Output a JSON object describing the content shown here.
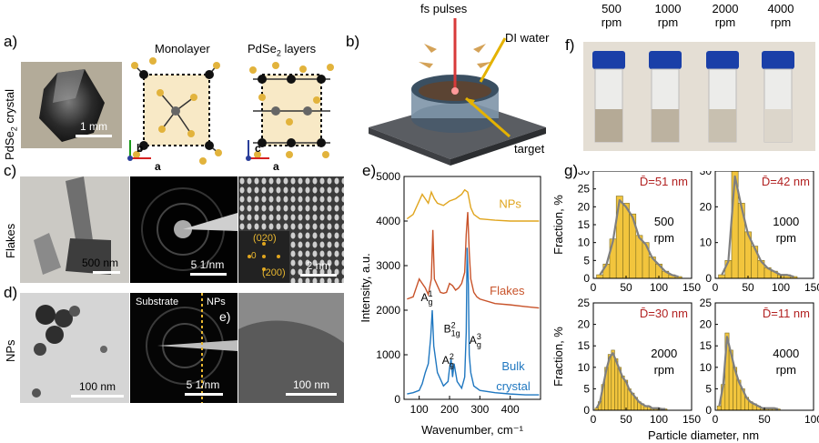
{
  "panel_labels": {
    "a": "a)",
    "b": "b)",
    "c": "c)",
    "d": "d)",
    "e": "e)",
    "f": "f)",
    "g": "g)"
  },
  "panel_a": {
    "crystal_label": "PdSe",
    "crystal_label_sub": "2",
    "crystal_label_tail": " crystal",
    "crystal_scale": "1 mm",
    "monolayer_title": "Monolayer",
    "layers_title_pre": "PdSe",
    "layers_title_sub": "2",
    "layers_title_post": " layers",
    "axes": {
      "b": "b",
      "a": "a",
      "c": "c"
    }
  },
  "panel_b": {
    "fs_pulses": "fs pulses",
    "di_water": "DI water",
    "target": "target"
  },
  "panel_c": {
    "row_label": "Flakes",
    "scale1": "500 nm",
    "scale2": "5 1/nm",
    "scale3": "2 nm",
    "fft_020": "(020)",
    "fft_0": "0",
    "fft_200": "(200)"
  },
  "panel_d": {
    "row_label": "NPs",
    "scale1": "100 nm",
    "scale2": "5 1/nm",
    "scale3": "100 nm",
    "substrate": "Substrate",
    "nps": "NPs",
    "inner_label": "e)"
  },
  "panel_f": {
    "speeds": [
      "500",
      "1000",
      "2000",
      "4000"
    ],
    "unit": "rpm"
  },
  "colors": {
    "nps": "#e0a51e",
    "flakes": "#c8532a",
    "bulk": "#1f77c0",
    "hist": "#f2c53d",
    "fit": "#7f7f7f",
    "dlabel": "#b22222"
  },
  "chart_data": [
    {
      "type": "line",
      "panel": "e)",
      "xlabel": "Wavenumber, cm⁻¹",
      "ylabel": "Intensity, a.u.",
      "xlim": [
        50,
        500
      ],
      "ylim": [
        0,
        5000
      ],
      "xticks": [
        100,
        200,
        300,
        400
      ],
      "yticks": [
        0,
        1000,
        2000,
        3000,
        4000,
        5000
      ],
      "peak_labels": [
        {
          "main": "A",
          "sup": "1",
          "sub": "g",
          "x": 125,
          "y": 2200
        },
        {
          "main": "A",
          "sup": "2",
          "sub": "g",
          "x": 195,
          "y": 800
        },
        {
          "main": "B",
          "sup": "2",
          "sub": "1g",
          "x": 208,
          "y": 1500
        },
        {
          "main": "A",
          "sup": "3",
          "sub": "g",
          "x": 285,
          "y": 1250
        }
      ],
      "series": [
        {
          "name": "NPs",
          "x": [
            60,
            80,
            100,
            110,
            120,
            130,
            140,
            150,
            160,
            180,
            200,
            220,
            240,
            250,
            260,
            270,
            280,
            300,
            350,
            400,
            450,
            495
          ],
          "values": [
            4050,
            4150,
            4450,
            4600,
            4500,
            4400,
            4650,
            4500,
            4400,
            4350,
            4450,
            4500,
            4600,
            4700,
            4650,
            4300,
            4150,
            4050,
            4020,
            4000,
            4000,
            4000
          ]
        },
        {
          "name": "Flakes",
          "x": [
            60,
            80,
            100,
            110,
            120,
            130,
            140,
            145,
            150,
            160,
            170,
            180,
            190,
            200,
            210,
            220,
            230,
            240,
            250,
            255,
            260,
            265,
            270,
            280,
            290,
            300,
            350,
            400,
            450,
            495
          ],
          "values": [
            2250,
            2300,
            2700,
            2600,
            2500,
            2350,
            2700,
            3800,
            2700,
            2550,
            2400,
            2380,
            2400,
            2600,
            2550,
            2450,
            2500,
            2600,
            2850,
            3700,
            4200,
            3300,
            2700,
            2400,
            2300,
            2250,
            2150,
            2120,
            2080,
            2050
          ]
        },
        {
          "name": "Bulk crystal",
          "x": [
            60,
            80,
            100,
            110,
            120,
            130,
            138,
            143,
            148,
            160,
            180,
            195,
            200,
            205,
            210,
            215,
            220,
            225,
            240,
            250,
            255,
            258,
            262,
            265,
            270,
            280,
            300,
            350,
            400,
            450,
            495
          ],
          "values": [
            120,
            150,
            200,
            350,
            600,
            800,
            1400,
            2000,
            1200,
            600,
            300,
            400,
            700,
            900,
            500,
            800,
            600,
            400,
            250,
            500,
            1500,
            3400,
            2600,
            1000,
            600,
            300,
            200,
            150,
            120,
            100,
            100
          ]
        }
      ]
    },
    {
      "type": "bar",
      "panel": "g) 500 rpm",
      "mean_label": "D̄=51 nm",
      "speed": "500",
      "unit": "rpm",
      "ylabel": "Fraction, %",
      "xlim": [
        0,
        150
      ],
      "ylim": [
        0,
        30
      ],
      "xticks": [
        0,
        50,
        100,
        150
      ],
      "yticks": [
        0,
        5,
        10,
        15,
        20,
        25,
        30
      ],
      "bin_width": 10,
      "bins": [
        10,
        20,
        30,
        40,
        50,
        60,
        70,
        80,
        90,
        100,
        110,
        120,
        130
      ],
      "values": [
        1,
        4,
        11,
        23,
        21,
        18,
        12,
        10,
        6,
        4,
        2,
        1,
        0.5
      ]
    },
    {
      "type": "bar",
      "panel": "g) 1000 rpm",
      "mean_label": "D̄=42 nm",
      "speed": "1000",
      "unit": "rpm",
      "xlim": [
        0,
        150
      ],
      "ylim": [
        0,
        30
      ],
      "xticks": [
        0,
        50,
        100,
        150
      ],
      "yticks": [
        0,
        10,
        20,
        30
      ],
      "bin_width": 10,
      "bins": [
        10,
        20,
        30,
        40,
        50,
        60,
        70,
        80,
        90,
        100,
        110,
        120
      ],
      "values": [
        1,
        5,
        30,
        21,
        13,
        9,
        5,
        3,
        2,
        1,
        1,
        0.5
      ]
    },
    {
      "type": "bar",
      "panel": "g) 2000 rpm",
      "mean_label": "D̄=30 nm",
      "speed": "2000",
      "unit": "rpm",
      "ylabel": "Fraction, %",
      "xlim": [
        0,
        150
      ],
      "ylim": [
        0,
        25
      ],
      "xticks": [
        0,
        50,
        100,
        150
      ],
      "yticks": [
        0,
        5,
        10,
        15,
        20,
        25
      ],
      "bin_width": 5,
      "bins": [
        5,
        10,
        15,
        20,
        25,
        30,
        35,
        40,
        45,
        50,
        55,
        60,
        65,
        70,
        75,
        80,
        85,
        90,
        95,
        100,
        105,
        110
      ],
      "values": [
        0.5,
        2,
        6,
        10,
        13,
        14,
        12,
        10,
        8,
        7,
        5,
        4,
        3,
        2,
        1.5,
        1,
        1,
        0.5,
        0.5,
        0.5,
        0.3,
        0.3
      ]
    },
    {
      "type": "bar",
      "panel": "g) 4000 rpm",
      "mean_label": "D̄=11 nm",
      "speed": "4000",
      "unit": "rpm",
      "xlabel": "Particle diameter, nm",
      "xlim": [
        0,
        100
      ],
      "ylim": [
        0,
        25
      ],
      "xticks": [
        0,
        50,
        100
      ],
      "yticks": [
        0,
        5,
        10,
        15,
        20,
        25
      ],
      "bin_width": 4,
      "bins": [
        4,
        8,
        12,
        16,
        20,
        24,
        28,
        32,
        36,
        40,
        44,
        48,
        52,
        56,
        60,
        64
      ],
      "values": [
        1,
        6,
        18,
        14,
        10,
        7,
        5,
        3,
        2,
        1.5,
        1,
        0.5,
        0.5,
        0.5,
        0.5,
        0.3
      ]
    }
  ]
}
